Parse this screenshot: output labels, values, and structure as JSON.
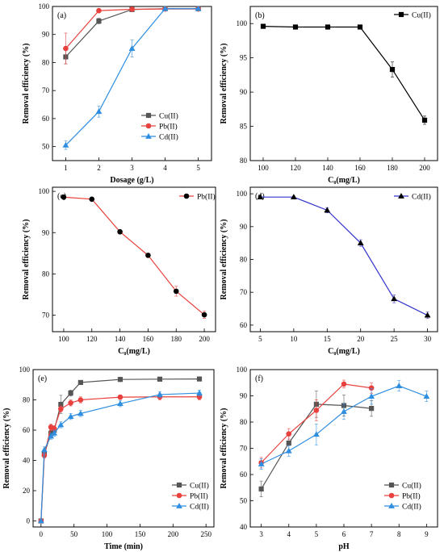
{
  "chart_data": [
    {
      "panel": "(a)",
      "type": "line",
      "xlabel": "Dosage (g/L)",
      "ylabel": "Removal efficiency (%)",
      "xlim": [
        0.6,
        5.4
      ],
      "ylim": [
        45,
        100
      ],
      "xticks": [
        1,
        2,
        3,
        4,
        5
      ],
      "yticks": [
        50,
        60,
        70,
        80,
        90,
        100
      ],
      "legend": "bottom-right",
      "series": [
        {
          "name": "Cu(II)",
          "color": "#555555",
          "marker": "square",
          "x": [
            1,
            2,
            3,
            4,
            5
          ],
          "y": [
            82,
            94.8,
            98.9,
            99.2,
            99.2
          ],
          "err": [
            2.5,
            1,
            0.5,
            0.4,
            0.4
          ]
        },
        {
          "name": "Pb(II)",
          "color": "#e8413d",
          "marker": "circle",
          "x": [
            1,
            2,
            3,
            4,
            5
          ],
          "y": [
            85,
            98.5,
            99,
            99.1,
            99.1
          ],
          "err": [
            5.5,
            0.6,
            0.5,
            0.4,
            0.4
          ]
        },
        {
          "name": "Cd(II)",
          "color": "#2f8ee0",
          "marker": "triangle",
          "x": [
            1,
            2,
            3,
            4,
            5
          ],
          "y": [
            50.5,
            62.5,
            85,
            99.2,
            99.2
          ],
          "err": [
            1.5,
            2,
            3,
            0.5,
            0.4
          ]
        }
      ]
    },
    {
      "panel": "(b)",
      "type": "line",
      "xlabel": "C₀(mg/L)",
      "ylabel": "Removal efficiency (%)",
      "xlim": [
        92,
        208
      ],
      "ylim": [
        80,
        102.5
      ],
      "xticks": [
        100,
        120,
        140,
        160,
        180,
        200
      ],
      "yticks": [
        80,
        85,
        90,
        95,
        100
      ],
      "legend": "top-right",
      "series": [
        {
          "name": "Cu(II)",
          "color": "#000000",
          "marker": "square",
          "x": [
            100,
            120,
            140,
            160,
            180,
            200
          ],
          "y": [
            99.6,
            99.5,
            99.5,
            99.5,
            93.3,
            85.9
          ],
          "err": [
            0.1,
            0.1,
            0.1,
            0.1,
            1.1,
            0.6
          ]
        }
      ]
    },
    {
      "panel": "(c)",
      "type": "line",
      "xlabel": "C₀(mg/L)",
      "ylabel": "Removal efficiency (%)",
      "xlim": [
        92,
        208
      ],
      "ylim": [
        66,
        101
      ],
      "xticks": [
        100,
        120,
        140,
        160,
        180,
        200
      ],
      "yticks": [
        70,
        80,
        90,
        100
      ],
      "legend": "top-right",
      "series": [
        {
          "name": "Pb(II)",
          "color": "#e8413d",
          "marker": "circle",
          "marker_fill": "#000000",
          "x": [
            100,
            120,
            140,
            160,
            180,
            200
          ],
          "y": [
            98.6,
            98.1,
            90.2,
            84.5,
            75.8,
            70.1
          ],
          "err": [
            0.3,
            0.4,
            0.3,
            0.5,
            1.2,
            0.9
          ]
        }
      ]
    },
    {
      "panel": "(d)",
      "type": "line",
      "xlabel": "C₀(mg/L)",
      "ylabel": "Removal efficiency (%)",
      "xlim": [
        3.5,
        31.5
      ],
      "ylim": [
        58,
        102
      ],
      "xticks": [
        5,
        10,
        15,
        20,
        25,
        30
      ],
      "yticks": [
        60,
        70,
        80,
        90,
        100
      ],
      "legend": "top-right",
      "series": [
        {
          "name": "Cd(II)",
          "color": "#3333cc",
          "marker": "triangle",
          "marker_fill": "#000000",
          "x": [
            5,
            10,
            15,
            20,
            25,
            30
          ],
          "y": [
            99,
            99,
            95,
            85,
            68,
            63
          ],
          "err": [
            0.3,
            0.3,
            0.8,
            1,
            1.2,
            1
          ]
        }
      ]
    },
    {
      "panel": "(e)",
      "type": "line",
      "xlabel": "Time (min)",
      "ylabel": "Removal efficiency (%)",
      "xlim": [
        -12,
        262
      ],
      "ylim": [
        -4,
        100
      ],
      "xticks": [
        0,
        50,
        100,
        150,
        200,
        250
      ],
      "yticks": [
        0,
        20,
        40,
        60,
        80,
        100
      ],
      "legend": "bottom-right",
      "series": [
        {
          "name": "Cu(II)",
          "color": "#555555",
          "marker": "square",
          "x": [
            0,
            5,
            15,
            20,
            30,
            45,
            60,
            120,
            180,
            240
          ],
          "y": [
            0,
            44,
            58,
            60,
            77,
            84.5,
            91.5,
            93.5,
            93.7,
            93.8
          ],
          "err": [
            0,
            2,
            2,
            2,
            6,
            2,
            1,
            1,
            1,
            1
          ]
        },
        {
          "name": "Pb(II)",
          "color": "#e8413d",
          "marker": "circle",
          "x": [
            0,
            5,
            15,
            20,
            30,
            45,
            60,
            120,
            180,
            240
          ],
          "y": [
            0,
            43.5,
            62,
            61,
            74,
            78,
            80,
            81.8,
            82,
            82
          ],
          "err": [
            0,
            2,
            2,
            2,
            2,
            2,
            2,
            1.5,
            2,
            2
          ]
        },
        {
          "name": "Cd(II)",
          "color": "#2f8ee0",
          "marker": "triangle",
          "x": [
            0,
            5,
            15,
            20,
            30,
            45,
            60,
            120,
            180,
            240
          ],
          "y": [
            0,
            47,
            56,
            58,
            63.5,
            69,
            71,
            77.5,
            83.5,
            84.5
          ],
          "err": [
            0,
            2,
            2,
            2,
            2,
            2,
            2,
            2,
            2,
            2
          ]
        }
      ]
    },
    {
      "panel": "(f)",
      "type": "line",
      "xlabel": "pH",
      "ylabel": "Removal efficiency (%)",
      "xlim": [
        2.6,
        9.4
      ],
      "ylim": [
        40,
        100
      ],
      "xticks": [
        3,
        4,
        5,
        6,
        7,
        8,
        9
      ],
      "yticks": [
        40,
        50,
        60,
        70,
        80,
        90,
        100
      ],
      "legend": "bottom-right",
      "series": [
        {
          "name": "Cu(II)",
          "color": "#555555",
          "marker": "square",
          "x": [
            3,
            4,
            5,
            6,
            7
          ],
          "y": [
            54.5,
            72,
            86.8,
            86.3,
            85.2
          ],
          "err": [
            3,
            3,
            5,
            4,
            3
          ]
        },
        {
          "name": "Pb(II)",
          "color": "#e8413d",
          "marker": "circle",
          "x": [
            3,
            4,
            5,
            6,
            7
          ],
          "y": [
            64.5,
            75.5,
            84.5,
            94.5,
            93
          ],
          "err": [
            2,
            2,
            4,
            1.5,
            2
          ]
        },
        {
          "name": "Cd(II)",
          "color": "#2f8ee0",
          "marker": "triangle",
          "x": [
            3,
            4,
            5,
            6,
            7,
            8,
            9
          ],
          "y": [
            64,
            69,
            75.3,
            84,
            89.8,
            93.8,
            89.8
          ],
          "err": [
            2,
            2,
            4,
            3,
            3,
            2,
            2
          ]
        }
      ]
    }
  ]
}
